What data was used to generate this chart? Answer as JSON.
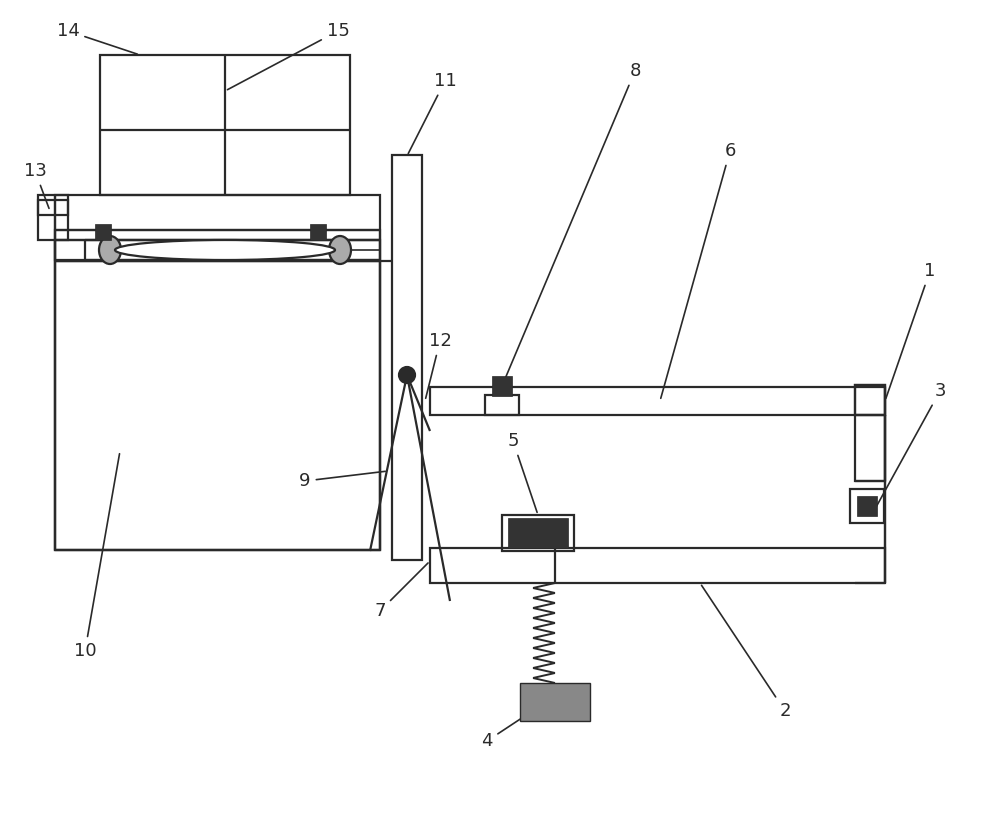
{
  "bg_color": "#ffffff",
  "lc": "#2a2a2a",
  "lw": 1.6,
  "fs": 13,
  "dark_fill": "#333333",
  "gray_fill": "#aaaaaa",
  "hatch_fill": "#888888"
}
